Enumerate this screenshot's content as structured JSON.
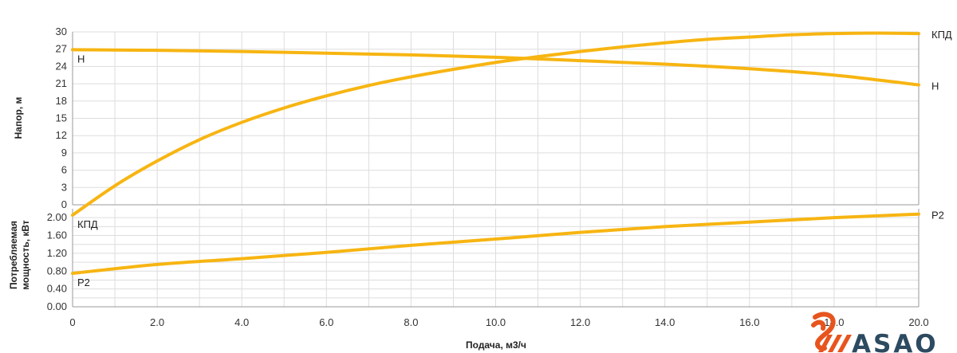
{
  "colors": {
    "curve": "#f7b512",
    "grid": "#dddddd",
    "axis": "#999999",
    "logo_orange": "#e8541e",
    "logo_dark": "#2c4a60"
  },
  "brand": {
    "name": "ASAO"
  },
  "chart_data": {
    "type": "line",
    "xlabel": "Подача, м3/ч",
    "xlim": [
      0,
      20
    ],
    "x_ticks": [
      "0",
      "2.0",
      "4.0",
      "6.0",
      "8.0",
      "10.0",
      "12.0",
      "14.0",
      "16.0",
      "18.0",
      "20.0"
    ],
    "x_tick_values": [
      0,
      2,
      4,
      6,
      8,
      10,
      12,
      14,
      16,
      18,
      20
    ],
    "grid": true,
    "panels": [
      {
        "id": "head",
        "ylabel": "Напор, м",
        "ylim": [
          0,
          30
        ],
        "y_ticks": [
          "0",
          "3",
          "6",
          "9",
          "12",
          "15",
          "18",
          "21",
          "24",
          "27",
          "30"
        ],
        "y_tick_values": [
          0,
          3,
          6,
          9,
          12,
          15,
          18,
          21,
          24,
          27,
          30
        ],
        "series": [
          {
            "name": "Н",
            "end_label": "Н",
            "x": [
              0,
              2,
              4,
              6,
              8,
              10,
              12,
              14,
              16,
              18,
              20
            ],
            "y": [
              26.9,
              26.8,
              26.6,
              26.3,
              26.0,
              25.6,
              25.0,
              24.4,
              23.6,
              22.5,
              20.8
            ]
          },
          {
            "name": "КПД",
            "end_label": "КПД",
            "x": [
              0,
              1,
              2,
              3,
              4,
              5,
              6,
              7,
              8,
              9,
              10,
              11,
              12,
              13,
              14,
              15,
              16,
              17,
              18,
              19,
              20
            ],
            "y": [
              -1.8,
              3.3,
              7.6,
              11.3,
              14.3,
              16.8,
              18.9,
              20.7,
              22.2,
              23.5,
              24.7,
              25.7,
              26.6,
              27.4,
              28.1,
              28.7,
              29.1,
              29.5,
              29.7,
              29.8,
              29.7
            ]
          }
        ]
      },
      {
        "id": "power",
        "ylabel": "Потребляемая мощность, кВт",
        "ylim": [
          0,
          2.2
        ],
        "y_ticks": [
          "0.00",
          "0.40",
          "0.80",
          "1.20",
          "1.60",
          "2.00"
        ],
        "y_tick_values": [
          0,
          0.4,
          0.8,
          1.2,
          1.6,
          2.0
        ],
        "y_ticks_minor": [
          "0.20",
          "0.60",
          "1.00",
          "1.40",
          "1.80"
        ],
        "y_tick_values_minor": [
          0.2,
          0.6,
          1.0,
          1.4,
          1.8
        ],
        "series": [
          {
            "name": "P2",
            "end_label": "P2",
            "x": [
              0,
              2,
              4,
              6,
              8,
              10,
              12,
              14,
              16,
              18,
              20
            ],
            "y": [
              0.75,
              0.95,
              1.08,
              1.22,
              1.38,
              1.52,
              1.67,
              1.8,
              1.9,
              2.0,
              2.08
            ]
          }
        ]
      }
    ]
  }
}
